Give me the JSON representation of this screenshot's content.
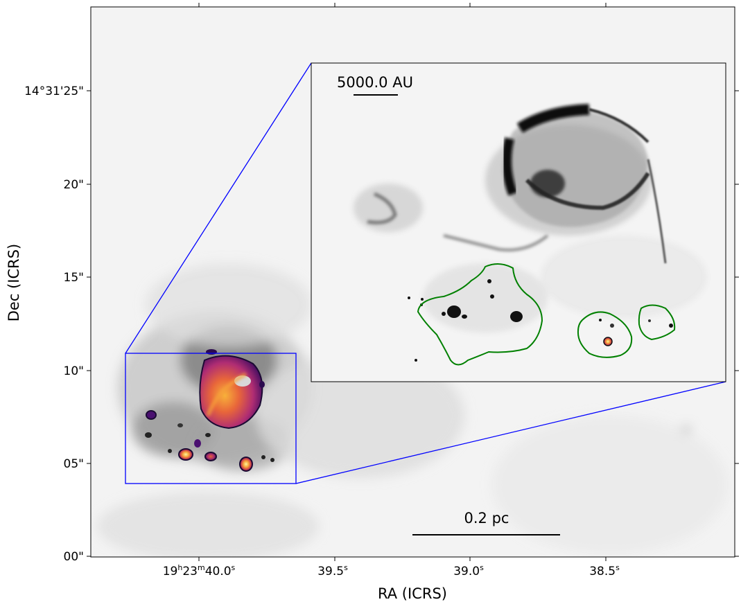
{
  "figure": {
    "x_axis_label": "RA (ICRS)",
    "y_axis_label": "Dec (ICRS)",
    "x_ticks": [
      {
        "base": "19",
        "h": "h",
        "mid": "23",
        "m": "m",
        "sec": "40.0",
        "s": "s"
      },
      {
        "base": "39.5",
        "s": "s"
      },
      {
        "base": "39.0",
        "s": "s"
      },
      {
        "base": "38.5",
        "s": "s"
      }
    ],
    "y_ticks": [
      "14°31'25\"",
      "20\"",
      "15\"",
      "10\"",
      "05\"",
      "00\""
    ],
    "main_scalebar_label": "0.2 pc",
    "inset_scalebar_label": "5000.0 AU",
    "zoom_box_color": "#0000ff",
    "contour_color": "#008000",
    "colormap": "inferno"
  }
}
